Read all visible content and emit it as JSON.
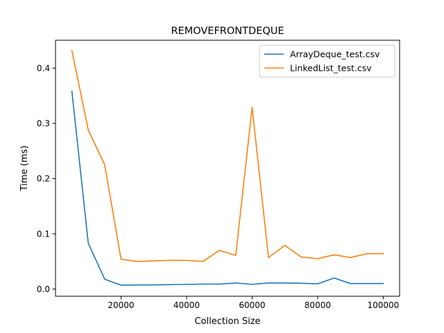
{
  "chart_data": {
    "type": "line",
    "title": "REMOVEFRONTDEQUE",
    "xlabel": "Collection Size",
    "ylabel": "Time (ms)",
    "xlim": [
      0,
      105000
    ],
    "ylim": [
      -0.013,
      0.4505
    ],
    "xticks": [
      20000,
      40000,
      60000,
      80000,
      100000
    ],
    "yticks": [
      0.0,
      0.1,
      0.2,
      0.3,
      0.4
    ],
    "xtick_labels": [
      "20000",
      "40000",
      "60000",
      "80000",
      "100000"
    ],
    "ytick_labels": [
      "0.0",
      "0.1",
      "0.2",
      "0.3",
      "0.4"
    ],
    "grid": false,
    "legend_position": "top-right",
    "x": [
      5000,
      10000,
      15000,
      20000,
      25000,
      30000,
      35000,
      40000,
      45000,
      50000,
      55000,
      60000,
      65000,
      70000,
      75000,
      80000,
      85000,
      90000,
      95000,
      100000
    ],
    "series": [
      {
        "name": "ArrayDeque_test.csv",
        "color": "#1f77b4",
        "values": [
          0.358,
          0.083,
          0.018,
          0.007,
          0.0075,
          0.0075,
          0.008,
          0.0085,
          0.009,
          0.009,
          0.011,
          0.0085,
          0.011,
          0.011,
          0.0105,
          0.0095,
          0.02,
          0.01,
          0.01,
          0.01
        ]
      },
      {
        "name": "LinkedList_test.csv",
        "color": "#ff7f0e",
        "values": [
          0.432,
          0.288,
          0.225,
          0.054,
          0.05,
          0.051,
          0.052,
          0.052,
          0.05,
          0.07,
          0.061,
          0.329,
          0.057,
          0.079,
          0.058,
          0.055,
          0.062,
          0.057,
          0.064,
          0.064
        ]
      }
    ]
  }
}
